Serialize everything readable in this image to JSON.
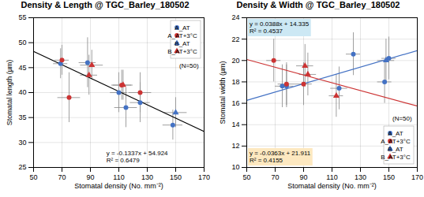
{
  "chart_data": [
    {
      "type": "scatter",
      "title": "Density & Length @ TGC_Barley_180502",
      "xlabel": "Stomatal density (No. mm⁻²)",
      "ylabel": "Stomatal length (µm)",
      "xlim": [
        50,
        170
      ],
      "ylim": [
        25,
        55
      ],
      "xticks": [
        50,
        70,
        90,
        110,
        130,
        150,
        170
      ],
      "yticks": [
        25,
        30,
        35,
        40,
        45,
        50,
        55
      ],
      "grid": true,
      "legend": "upper right",
      "series": [
        {
          "name": "A_AT",
          "color": "#4472C4",
          "marker": "circle",
          "x": [
            69,
            88,
            110,
            115,
            125,
            148
          ],
          "values": [
            45.8,
            46.0,
            40.0,
            37.0,
            38.0,
            33.5
          ],
          "xerr": [
            5,
            6,
            6,
            8,
            7,
            7
          ],
          "yerr": [
            3,
            5,
            4,
            4,
            4,
            3
          ]
        },
        {
          "name": "A_AT+3°C",
          "color": "#CC3333",
          "marker": "circle",
          "x": [
            70,
            75,
            112,
            125
          ],
          "values": [
            46.5,
            39.0,
            41.5,
            40.0
          ],
          "xerr": [
            5,
            8,
            7,
            8
          ],
          "yerr": [
            3,
            5,
            3,
            4
          ]
        },
        {
          "name": "B_AT",
          "color": "#4472C4",
          "marker": "triangle",
          "x": [
            150
          ],
          "values": [
            36.0
          ],
          "xerr": [
            8
          ],
          "yerr": [
            3
          ]
        },
        {
          "name": "B_AT+3°C",
          "color": "#CC3333",
          "marker": "triangle",
          "x": [
            89,
            91,
            113
          ],
          "values": [
            43.5,
            45.5,
            41.5
          ],
          "xerr": [
            6,
            8,
            7
          ],
          "yerr": [
            4,
            3,
            3
          ]
        },
        {
          "type": "line",
          "color": "#000000",
          "x": [
            50,
            170
          ],
          "values": [
            48.239,
            32.195
          ]
        }
      ],
      "annotations": [
        {
          "text": [
            "y = -0.1337x + 54.924",
            "R² = 0.6479"
          ]
        },
        {
          "text": [
            "(N=50)"
          ]
        }
      ]
    },
    {
      "type": "scatter",
      "title": "Density & Width @ TGC_Barley_180502",
      "xlabel": "Stomatal density (No. mm⁻²)",
      "ylabel": "Stomatal width (µm)",
      "xlim": [
        50,
        170
      ],
      "ylim": [
        10,
        24
      ],
      "xticks": [
        50,
        70,
        90,
        110,
        130,
        150,
        170
      ],
      "yticks": [
        10,
        12,
        14,
        16,
        18,
        20,
        22,
        24
      ],
      "grid": true,
      "legend": "lower right",
      "series": [
        {
          "name": "A_AT",
          "color": "#4472C4",
          "marker": "circle",
          "x": [
            75,
            78,
            115,
            125,
            147,
            150
          ],
          "values": [
            17.6,
            17.6,
            17.4,
            20.6,
            18.0,
            20.2
          ],
          "xerr": [
            5,
            5,
            6,
            5,
            5,
            5
          ],
          "yerr": [
            2,
            2,
            2,
            2,
            2,
            2
          ]
        },
        {
          "name": "A_AT+3°C",
          "color": "#CC3333",
          "marker": "circle",
          "x": [
            69,
            78,
            90
          ],
          "values": [
            20.0,
            17.8,
            17.8
          ],
          "xerr": [
            5,
            6,
            6
          ],
          "yerr": [
            2,
            2,
            2
          ]
        },
        {
          "name": "B_AT",
          "color": "#4472C4",
          "marker": "triangle",
          "x": [
            148
          ],
          "values": [
            20.0
          ],
          "xerr": [
            6
          ],
          "yerr": [
            2
          ]
        },
        {
          "name": "B_AT+3°C",
          "color": "#CC3333",
          "marker": "triangle",
          "x": [
            91,
            93,
            113
          ],
          "values": [
            19.5,
            18.7,
            16.7
          ],
          "xerr": [
            6,
            6,
            5
          ],
          "yerr": [
            2,
            2,
            2
          ]
        },
        {
          "type": "line",
          "color": "#4472C4",
          "x": [
            50,
            170
          ],
          "values": [
            16.275,
            20.931
          ]
        },
        {
          "type": "line",
          "color": "#CC3333",
          "x": [
            50,
            170
          ],
          "values": [
            20.096,
            15.74
          ]
        }
      ],
      "annotations": [
        {
          "text": [
            "y = 0.0388x + 14.335",
            "R² = 0.4537"
          ],
          "color": "#cce8f4"
        },
        {
          "text": [
            "y = -0.0363x + 21.911",
            "R² = 0.4155"
          ],
          "color": "#fde8c0"
        },
        {
          "text": [
            "(N=50)"
          ]
        }
      ]
    }
  ]
}
